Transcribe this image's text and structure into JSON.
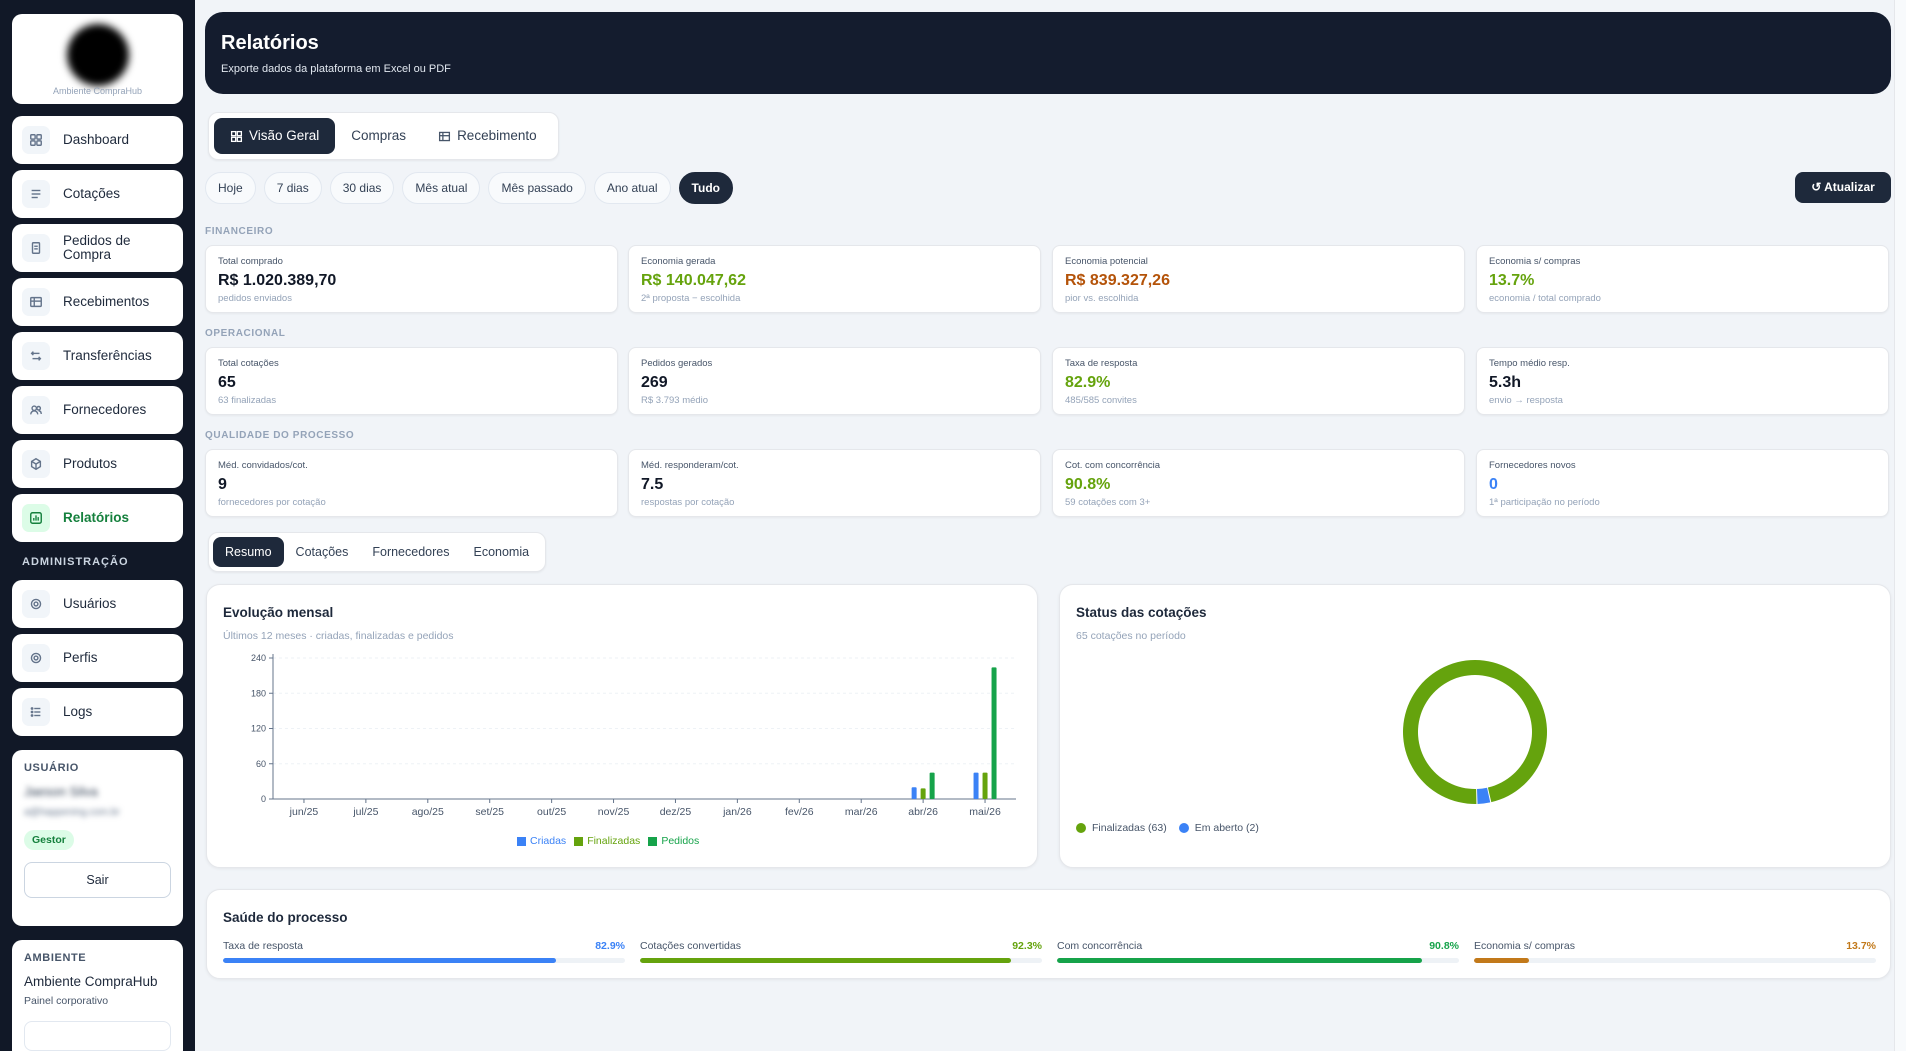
{
  "sidebar": {
    "logo_caption": "Ambiente CompraHub",
    "items": [
      {
        "label": "Dashboard",
        "icon": "dashboard-icon"
      },
      {
        "label": "Cotações",
        "icon": "list-icon"
      },
      {
        "label": "Pedidos de Compra",
        "icon": "document-icon"
      },
      {
        "label": "Recebimentos",
        "icon": "table-icon"
      },
      {
        "label": "Transferências",
        "icon": "transfer-icon"
      },
      {
        "label": "Fornecedores",
        "icon": "users-icon"
      },
      {
        "label": "Produtos",
        "icon": "box-icon"
      },
      {
        "label": "Relatórios",
        "icon": "chart-icon"
      }
    ],
    "admin_title": "ADMINISTRAÇÃO",
    "admin_items": [
      {
        "label": "Usuários",
        "icon": "gear-icon"
      },
      {
        "label": "Perfis",
        "icon": "gear-icon"
      },
      {
        "label": "Logs",
        "icon": "list-icon"
      }
    ],
    "user": {
      "caption": "USUÁRIO",
      "name": "Jaeson Silva",
      "email": "a@happening.com.br",
      "role": "Gestor",
      "logout": "Sair"
    },
    "environment": {
      "caption": "AMBIENTE",
      "name": "Ambiente CompraHub",
      "subtitle": "Painel corporativo"
    }
  },
  "header": {
    "title": "Relatórios",
    "subtitle": "Exporte dados da plataforma em Excel ou PDF"
  },
  "main_tabs": [
    {
      "label": "Visão Geral",
      "icon": "grid-icon"
    },
    {
      "label": "Compras",
      "icon": ""
    },
    {
      "label": "Recebimento",
      "icon": "table-icon"
    }
  ],
  "filters": [
    "Hoje",
    "7 dias",
    "30 dias",
    "Mês atual",
    "Mês passado",
    "Ano atual",
    "Tudo"
  ],
  "refresh_label": "↺ Atualizar",
  "groups": {
    "financeiro": {
      "label": "FINANCEIRO",
      "cards": [
        {
          "label": "Total comprado",
          "value": "R$ 1.020.389,70",
          "sub": "pedidos enviados",
          "color": "#111827"
        },
        {
          "label": "Economia gerada",
          "value": "R$ 140.047,62",
          "sub": "2ª proposta − escolhida",
          "color": "#65a30d"
        },
        {
          "label": "Economia potencial",
          "value": "R$ 839.327,26",
          "sub": "pior vs. escolhida",
          "color": "#b45309"
        },
        {
          "label": "Economia s/ compras",
          "value": "13.7%",
          "sub": "economia / total comprado",
          "color": "#65a30d"
        }
      ]
    },
    "operacional": {
      "label": "OPERACIONAL",
      "cards": [
        {
          "label": "Total cotações",
          "value": "65",
          "sub": "63 finalizadas",
          "color": "#111827"
        },
        {
          "label": "Pedidos gerados",
          "value": "269",
          "sub": "R$ 3.793 médio",
          "color": "#111827"
        },
        {
          "label": "Taxa de resposta",
          "value": "82.9%",
          "sub": "485/585 convites",
          "color": "#65a30d"
        },
        {
          "label": "Tempo médio resp.",
          "value": "5.3h",
          "sub": "envio → resposta",
          "color": "#111827"
        }
      ]
    },
    "qualidade": {
      "label": "QUALIDADE DO PROCESSO",
      "cards": [
        {
          "label": "Méd. convidados/cot.",
          "value": "9",
          "sub": "fornecedores por cotação",
          "color": "#111827"
        },
        {
          "label": "Méd. responderam/cot.",
          "value": "7.5",
          "sub": "respostas por cotação",
          "color": "#111827"
        },
        {
          "label": "Cot. com concorrência",
          "value": "90.8%",
          "sub": "59 cotações com 3+",
          "color": "#65a30d"
        },
        {
          "label": "Fornecedores novos",
          "value": "0",
          "sub": "1ª participação no período",
          "color": "#3b82f6"
        }
      ]
    }
  },
  "sub_tabs": [
    "Resumo",
    "Cotações",
    "Fornecedores",
    "Economia"
  ],
  "evolution_panel": {
    "title": "Evolução mensal",
    "subtitle": "Últimos 12 meses · criadas, finalizadas e pedidos"
  },
  "status_panel": {
    "title": "Status das cotações",
    "subtitle": "65 cotações no período"
  },
  "chart_data": [
    {
      "type": "bar",
      "categories": [
        "jun/25",
        "jul/25",
        "ago/25",
        "set/25",
        "out/25",
        "nov/25",
        "dez/25",
        "jan/26",
        "fev/26",
        "mar/26",
        "abr/26",
        "mai/26"
      ],
      "series": [
        {
          "name": "Criadas",
          "color": "#3b82f6",
          "values": [
            0,
            0,
            0,
            0,
            0,
            0,
            0,
            0,
            0,
            0,
            20,
            45
          ]
        },
        {
          "name": "Finalizadas",
          "color": "#65a30d",
          "values": [
            0,
            0,
            0,
            0,
            0,
            0,
            0,
            0,
            0,
            0,
            18,
            45
          ]
        },
        {
          "name": "Pedidos",
          "color": "#16a34a",
          "values": [
            0,
            0,
            0,
            0,
            0,
            0,
            0,
            0,
            0,
            0,
            45,
            224
          ]
        }
      ],
      "yticks": [
        0,
        60,
        120,
        180,
        240
      ],
      "ylim": [
        0,
        240
      ],
      "grid": true,
      "legend": "bottom"
    },
    {
      "type": "pie",
      "donut": true,
      "slices": [
        {
          "name": "Finalizadas (63)",
          "value": 63,
          "color": "#65a30d"
        },
        {
          "name": "Em aberto (2)",
          "value": 2,
          "color": "#3b82f6"
        }
      ],
      "legend": "bottom-left"
    }
  ],
  "health": {
    "title": "Saúde do processo",
    "items": [
      {
        "label": "Taxa de resposta",
        "pct": "82.9%",
        "value": 82.9,
        "color": "#3b82f6"
      },
      {
        "label": "Cotações convertidas",
        "pct": "92.3%",
        "value": 92.3,
        "color": "#65a30d"
      },
      {
        "label": "Com concorrência",
        "pct": "90.8%",
        "value": 90.8,
        "color": "#16a34a"
      },
      {
        "label": "Economia s/ compras",
        "pct": "13.7%",
        "value": 13.7,
        "color": "#c2791a"
      }
    ]
  }
}
